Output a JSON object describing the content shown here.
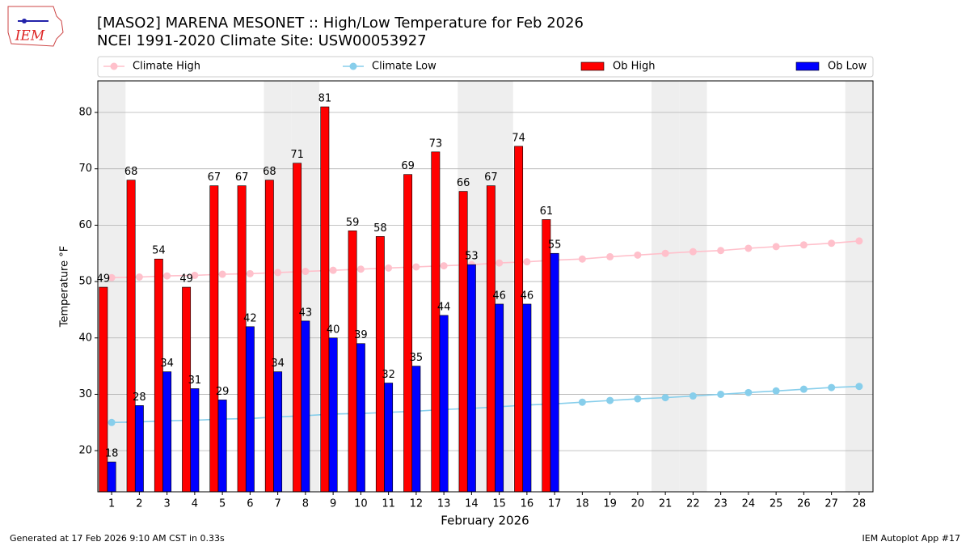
{
  "chart_data": {
    "type": "bar",
    "title": "[MASO2] MARENA MESONET :: High/Low Temperature for Feb 2026",
    "subtitle": "NCEI 1991-2020 Climate Site: USW00053927",
    "x_label": "February 2026",
    "y_label": "Temperature °F",
    "x": [
      1,
      2,
      3,
      4,
      5,
      6,
      7,
      8,
      9,
      10,
      11,
      12,
      13,
      14,
      15,
      16,
      17,
      18,
      19,
      20,
      21,
      22,
      23,
      24,
      25,
      26,
      27,
      28
    ],
    "xlim": [
      0.5,
      28.5
    ],
    "xticks": [
      1,
      2,
      3,
      4,
      5,
      6,
      7,
      8,
      9,
      10,
      11,
      12,
      13,
      14,
      15,
      16,
      17,
      18,
      19,
      20,
      21,
      22,
      23,
      24,
      25,
      26,
      27,
      28
    ],
    "ylim": [
      12.7,
      85.6
    ],
    "yticks": [
      20,
      30,
      40,
      50,
      60,
      70,
      80
    ],
    "grid": true,
    "legend": "top",
    "weekend_days": [
      1,
      7,
      8,
      14,
      15,
      21,
      22,
      28
    ],
    "series": [
      {
        "name": "Climate High",
        "type": "line",
        "color": "#ffc0cb",
        "values": [
          50.7,
          50.8,
          51.0,
          51.1,
          51.3,
          51.4,
          51.6,
          51.8,
          52.0,
          52.2,
          52.4,
          52.6,
          52.8,
          53.0,
          53.3,
          53.5,
          53.8,
          54.0,
          54.4,
          54.7,
          55.0,
          55.3,
          55.5,
          55.9,
          56.2,
          56.5,
          56.8,
          57.2
        ]
      },
      {
        "name": "Climate Low",
        "type": "line",
        "color": "#87ceeb",
        "values": [
          25.0,
          25.1,
          25.3,
          25.4,
          25.6,
          25.7,
          26.0,
          26.2,
          26.5,
          26.6,
          26.8,
          27.0,
          27.3,
          27.5,
          27.8,
          28.1,
          28.3,
          28.6,
          28.9,
          29.2,
          29.4,
          29.7,
          30.0,
          30.3,
          30.6,
          30.9,
          31.2,
          31.4
        ]
      },
      {
        "name": "Ob High",
        "type": "bar",
        "color": "#ff0000",
        "values": [
          49,
          68,
          54,
          49,
          67,
          67,
          68,
          71,
          81,
          59,
          58,
          69,
          73,
          66,
          67,
          74,
          61,
          null,
          null,
          null,
          null,
          null,
          null,
          null,
          null,
          null,
          null,
          null
        ]
      },
      {
        "name": "Ob Low",
        "type": "bar",
        "color": "#0000ff",
        "values": [
          18,
          28,
          34,
          31,
          29,
          42,
          34,
          43,
          40,
          39,
          32,
          35,
          44,
          53,
          46,
          46,
          55,
          null,
          null,
          null,
          null,
          null,
          null,
          null,
          null,
          null,
          null,
          null
        ]
      }
    ]
  },
  "logo_text": "IEM",
  "footer_left": "Generated at 17 Feb 2026 9:10 AM CST in 0.33s",
  "footer_right": "IEM Autoplot App #17"
}
